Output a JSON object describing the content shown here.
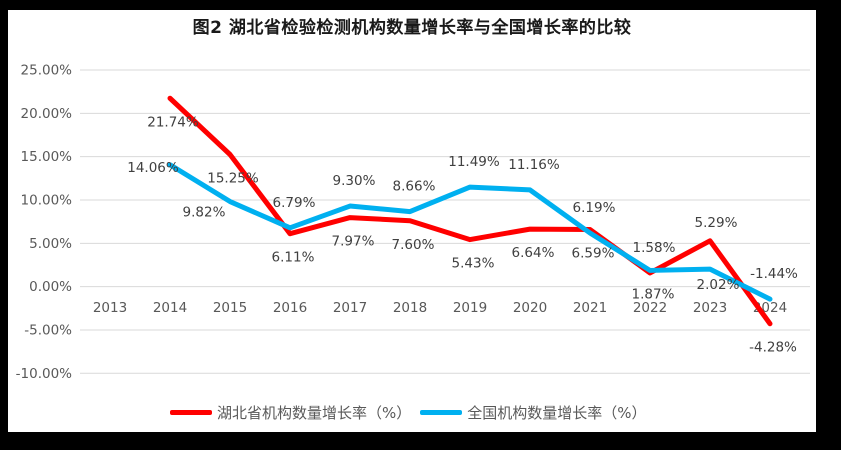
{
  "title": "图2  湖北省检验检测机构数量增长率与全国增长率的比较",
  "colors": {
    "hubei_line": "#FF0000",
    "national_line": "#00B0F0",
    "gridline": "#D9D9D9",
    "axis_text": "#595959",
    "data_label_text": "#404040",
    "frame": "#000000",
    "background": "#FFFFFF"
  },
  "chart_data": {
    "type": "line",
    "title": "图2  湖北省检验检测机构数量增长率与全国增长率的比较",
    "categories": [
      "2013",
      "2014",
      "2015",
      "2016",
      "2017",
      "2018",
      "2019",
      "2020",
      "2021",
      "2022",
      "2023",
      "2024"
    ],
    "series": [
      {
        "name": "湖北省机构数量增长率（%）",
        "color": "#FF0000",
        "values": [
          null,
          21.74,
          15.25,
          6.11,
          7.97,
          7.6,
          5.43,
          6.64,
          6.59,
          1.58,
          5.29,
          -4.28
        ],
        "labels": [
          null,
          "21.74%",
          "15.25%",
          "6.11%",
          "7.97%",
          "7.60%",
          "5.43%",
          "6.64%",
          "6.59%",
          "1.58%",
          "5.29%",
          "-4.28%"
        ],
        "label_placement": [
          null,
          "below",
          "below",
          "below",
          "below",
          "below",
          "below",
          "below",
          "below",
          "above",
          "above-near",
          "below"
        ]
      },
      {
        "name": "全国机构数量增长率（%）",
        "color": "#00B0F0",
        "values": [
          null,
          14.06,
          9.82,
          6.79,
          9.3,
          8.66,
          11.49,
          11.16,
          6.19,
          1.87,
          2.02,
          -1.44
        ],
        "labels": [
          null,
          "14.06%",
          "9.82%",
          "6.79%",
          "9.30%",
          "8.66%",
          "11.49%",
          "11.16%",
          "6.19%",
          "1.87%",
          "2.02%",
          "-1.44%"
        ],
        "label_placement": [
          null,
          "left",
          "below-left",
          "above",
          "above",
          "above",
          "above",
          "above",
          "above",
          "below",
          "below-near",
          "above"
        ]
      }
    ],
    "y_axis": {
      "min": -10,
      "max": 25,
      "step": 5,
      "tick_values": [
        25,
        20,
        15,
        10,
        5,
        0,
        -5,
        -10
      ],
      "tick_labels": [
        "25.00%",
        "20.00%",
        "15.00%",
        "10.00%",
        "5.00%",
        "0.00%",
        "-5.00%",
        "-10.00%"
      ]
    },
    "grid": true,
    "legend_position": "bottom"
  }
}
